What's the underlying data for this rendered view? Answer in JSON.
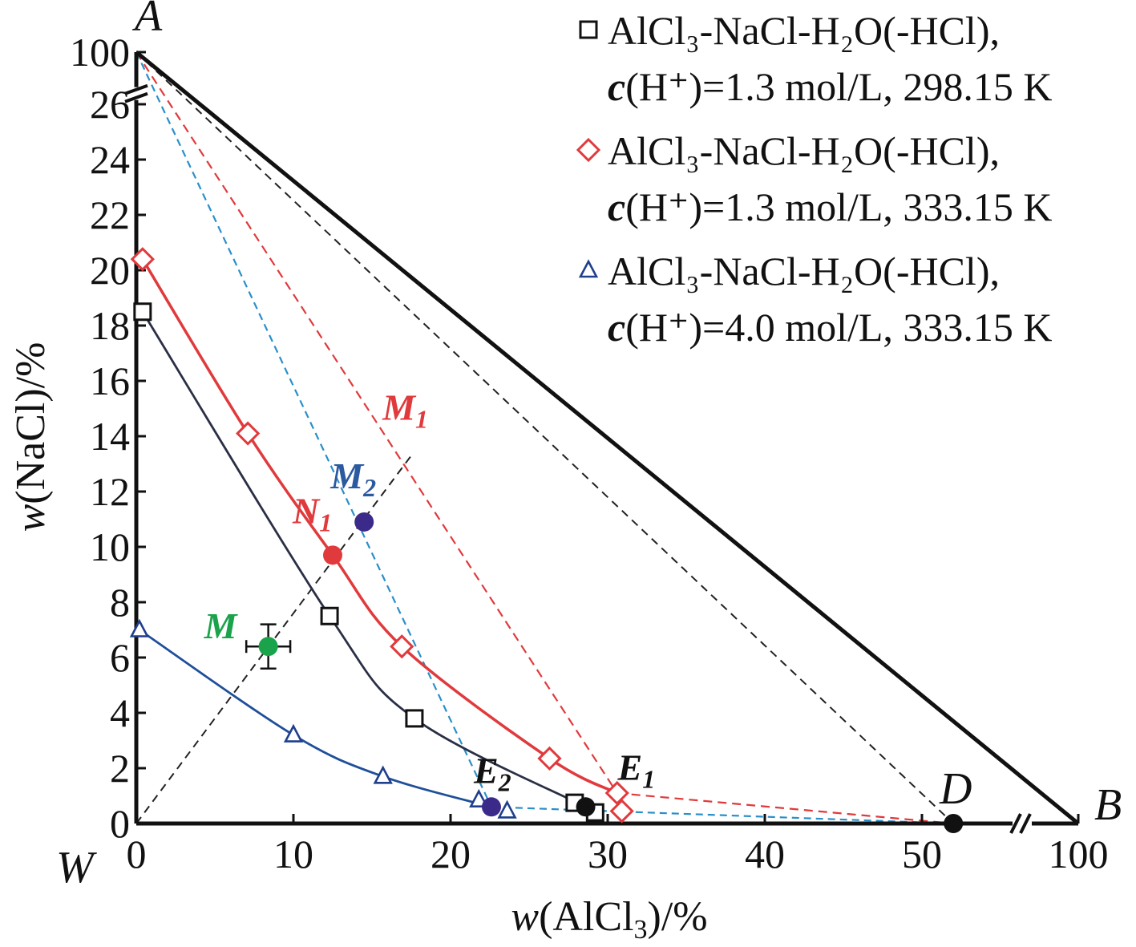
{
  "chart_data": {
    "type": "scatter",
    "xlabel": {
      "var": "w",
      "main": "(AlCl",
      "sub": "3",
      "tail": ")/%"
    },
    "ylabel": {
      "var": "w",
      "main": "(NaCl)/%"
    },
    "x_ticks": [
      "0",
      "10",
      "20",
      "30",
      "40",
      "50",
      "100"
    ],
    "x_tick_values": [
      0,
      10,
      20,
      30,
      40,
      50,
      100
    ],
    "y_ticks": [
      "0",
      "2",
      "4",
      "6",
      "8",
      "10",
      "12",
      "14",
      "16",
      "18",
      "20",
      "22",
      "24",
      "26",
      "100"
    ],
    "y_tick_values": [
      0,
      2,
      4,
      6,
      8,
      10,
      12,
      14,
      16,
      18,
      20,
      22,
      24,
      26,
      100
    ],
    "x_range": [
      0,
      100
    ],
    "y_range": [
      0,
      100
    ],
    "axis_breaks": {
      "x": "between 50 and 100",
      "y": "between 26 and 100"
    },
    "vertices": {
      "A": "A",
      "B": "B",
      "W": "W",
      "D": "D"
    },
    "series": [
      {
        "legend_line1": "AlCl₃-NaCl-H₂O(-HCl),",
        "legend_line2_var": "c",
        "legend_line2_rest": "(H⁺)=1.3 mol/L, 298.15 K",
        "marker": "square",
        "color": "#111111",
        "line_color": "#2a2f45",
        "points": [
          [
            0.4,
            18.5
          ],
          [
            12.3,
            7.5
          ],
          [
            17.7,
            3.8
          ],
          [
            27.9,
            0.75
          ],
          [
            29.2,
            0.4
          ]
        ],
        "curve": [
          [
            0.4,
            18.5
          ],
          [
            12.3,
            7.5
          ],
          [
            17.7,
            3.8
          ],
          [
            28.6,
            0.6
          ]
        ]
      },
      {
        "legend_line1": "AlCl₃-NaCl-H₂O(-HCl),",
        "legend_line2_var": "c",
        "legend_line2_rest": "(H⁺)=1.3 mol/L, 333.15 K",
        "marker": "diamond",
        "color": "#e03a3c",
        "line_color": "#e03a3c",
        "points": [
          [
            0.4,
            20.4
          ],
          [
            7.1,
            14.1
          ],
          [
            16.9,
            6.4
          ],
          [
            26.3,
            2.35
          ],
          [
            30.6,
            1.1
          ],
          [
            30.9,
            0.45
          ]
        ],
        "curve": [
          [
            0.4,
            20.4
          ],
          [
            7.1,
            14.1
          ],
          [
            12.5,
            9.7
          ],
          [
            16.9,
            6.4
          ],
          [
            26.3,
            2.35
          ],
          [
            30.6,
            1.1
          ]
        ]
      },
      {
        "legend_line1": "AlCl₃-NaCl-H₂O(-HCl),",
        "legend_line2_var": "c",
        "legend_line2_rest": "(H⁺)=4.0 mol/L, 333.15 K",
        "marker": "triangle",
        "color": "#1f3e8c",
        "line_color": "#1f4f9a",
        "points": [
          [
            0.2,
            7.0
          ],
          [
            10.0,
            3.2
          ],
          [
            15.7,
            1.7
          ],
          [
            21.8,
            0.85
          ],
          [
            23.6,
            0.45
          ]
        ],
        "curve": [
          [
            0.2,
            7.0
          ],
          [
            10.0,
            3.2
          ],
          [
            15.7,
            1.7
          ],
          [
            22.6,
            0.6
          ]
        ]
      }
    ],
    "special_points": [
      {
        "label": "M",
        "sub": "",
        "x": 8.4,
        "y": 6.4,
        "color": "#1aa34a",
        "label_color": "#1aa34a",
        "xerr": 1.4,
        "yerr": 0.8
      },
      {
        "label": "N",
        "sub": "1",
        "x": 12.5,
        "y": 9.7,
        "color": "#e03a3c",
        "label_color": "#e03a3c"
      },
      {
        "label": "M",
        "sub": "2",
        "x": 14.5,
        "y": 10.9,
        "color": "#3b2a8a",
        "label_color": "#2b5aa0"
      },
      {
        "label": "M",
        "sub": "1",
        "x": 17.2,
        "y": 13.0,
        "color": "none",
        "label_color": "#e03a3c"
      },
      {
        "label": "E",
        "sub": "1",
        "x": 28.6,
        "y": 0.6,
        "color": "#111111",
        "label_color": "#111111"
      },
      {
        "label": "E",
        "sub": "2",
        "x": 22.6,
        "y": 0.6,
        "color": "#3b2a8a",
        "label_color": "#111111"
      },
      {
        "label": "D",
        "sub": "",
        "x": 52.0,
        "y": 0.0,
        "color": "#111111",
        "label_color": "#111111"
      }
    ],
    "colors": {
      "axis": "#111111",
      "teal_dash": "#2a8fc8",
      "red_dash": "#e03a3c",
      "black_dash": "#222222"
    }
  }
}
